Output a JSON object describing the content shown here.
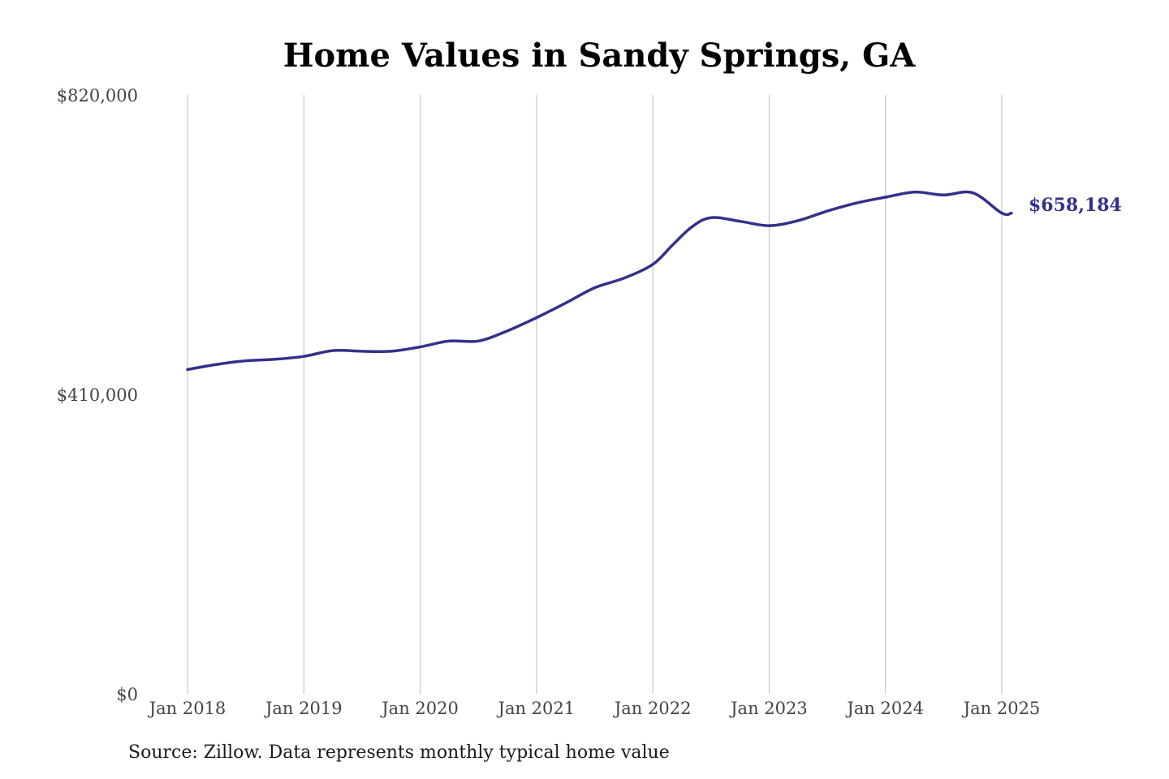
{
  "colors": {
    "line": "#34318a",
    "gridline": "#bdbdbd",
    "end_label": "#34318a",
    "background": "#ffffff"
  },
  "source_note": "Source: Zillow. Data represents monthly typical home value",
  "chart_data": {
    "type": "line",
    "title": "Home Values in Sandy Springs, GA",
    "xlabel": "",
    "ylabel": "",
    "ylim": [
      0,
      820000
    ],
    "y_ticks": [
      0,
      410000,
      820000
    ],
    "y_tick_labels": [
      "$0",
      "$410,000",
      "$820,000"
    ],
    "x_ticks": [
      "2018-01",
      "2019-01",
      "2020-01",
      "2021-01",
      "2022-01",
      "2023-01",
      "2024-01",
      "2025-01"
    ],
    "x_tick_labels": [
      "Jan 2018",
      "Jan 2019",
      "Jan 2020",
      "Jan 2021",
      "Jan 2022",
      "Jan 2023",
      "Jan 2024",
      "Jan 2025"
    ],
    "xlim": [
      "2018-01",
      "2025-01"
    ],
    "grid": {
      "vertical": true,
      "horizontal": false
    },
    "legend": "none",
    "end_label": "$658,184",
    "series": [
      {
        "x": [
          "2018-01",
          "2018-04",
          "2018-07",
          "2018-10",
          "2019-01",
          "2019-04",
          "2019-07",
          "2019-10",
          "2020-01",
          "2020-04",
          "2020-07",
          "2020-10",
          "2021-01",
          "2021-04",
          "2021-07",
          "2021-10",
          "2022-01",
          "2022-03",
          "2022-05",
          "2022-07",
          "2022-10",
          "2023-01",
          "2023-04",
          "2023-07",
          "2023-10",
          "2024-01",
          "2024-04",
          "2024-07",
          "2024-10",
          "2025-01",
          "2025-02"
        ],
        "values": [
          444000,
          451000,
          456000,
          458000,
          462000,
          470000,
          469000,
          469000,
          475000,
          483000,
          483000,
          497000,
          515000,
          535000,
          556000,
          569000,
          588000,
          614000,
          639000,
          652000,
          647000,
          641000,
          648000,
          661000,
          672000,
          680000,
          687000,
          683000,
          686000,
          658184,
          658184
        ]
      }
    ]
  }
}
